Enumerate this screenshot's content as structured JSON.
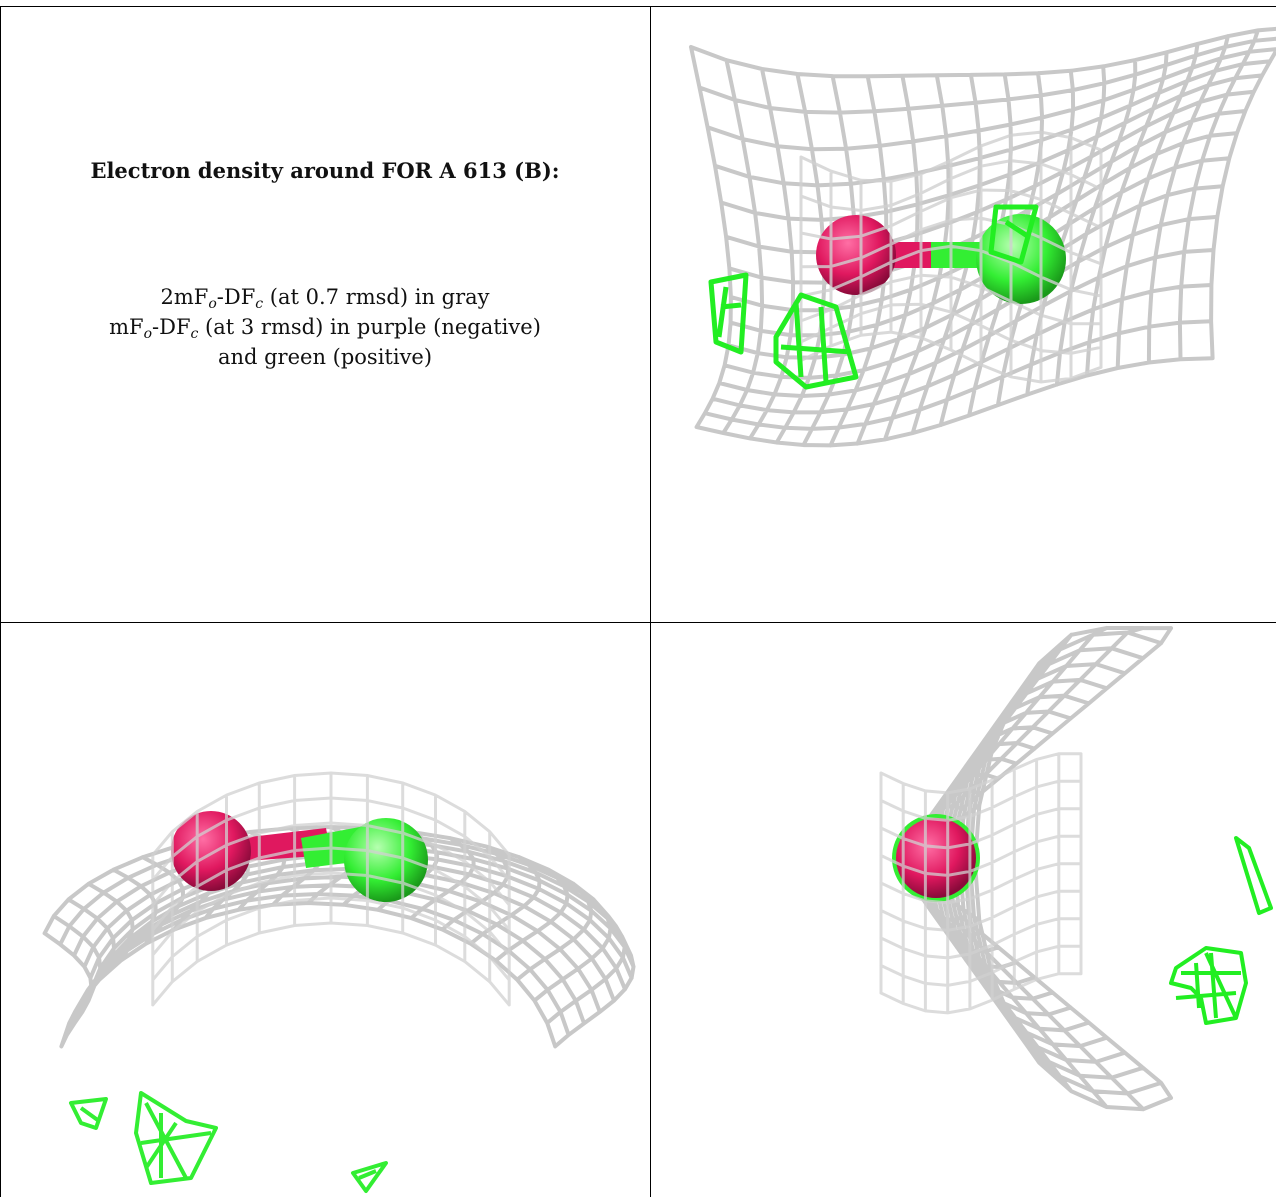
{
  "caption": {
    "title": "Electron density around FOR A 613 (B):",
    "line1_a": "2mF",
    "line1_sub1": "o",
    "line1_b": "-DF",
    "line1_sub2": "c",
    "line1_c": " (at 0.7 rmsd) in gray",
    "line2_a": "mF",
    "line2_sub1": "o",
    "line2_b": "-DF",
    "line2_sub2": "c",
    "line2_c": " (at 3 rmsd) in purple (negative)",
    "line3": "and green (positive)"
  },
  "colors": {
    "mesh_gray": "#c8c8c8",
    "mesh_gray_dark": "#9a9a9a",
    "positive_green": "#33ee33",
    "negative_purple": "#e0185f",
    "border": "#000000"
  },
  "panels": [
    {
      "name": "density-view-top-right"
    },
    {
      "name": "density-view-bottom-left"
    },
    {
      "name": "density-view-bottom-right"
    }
  ]
}
